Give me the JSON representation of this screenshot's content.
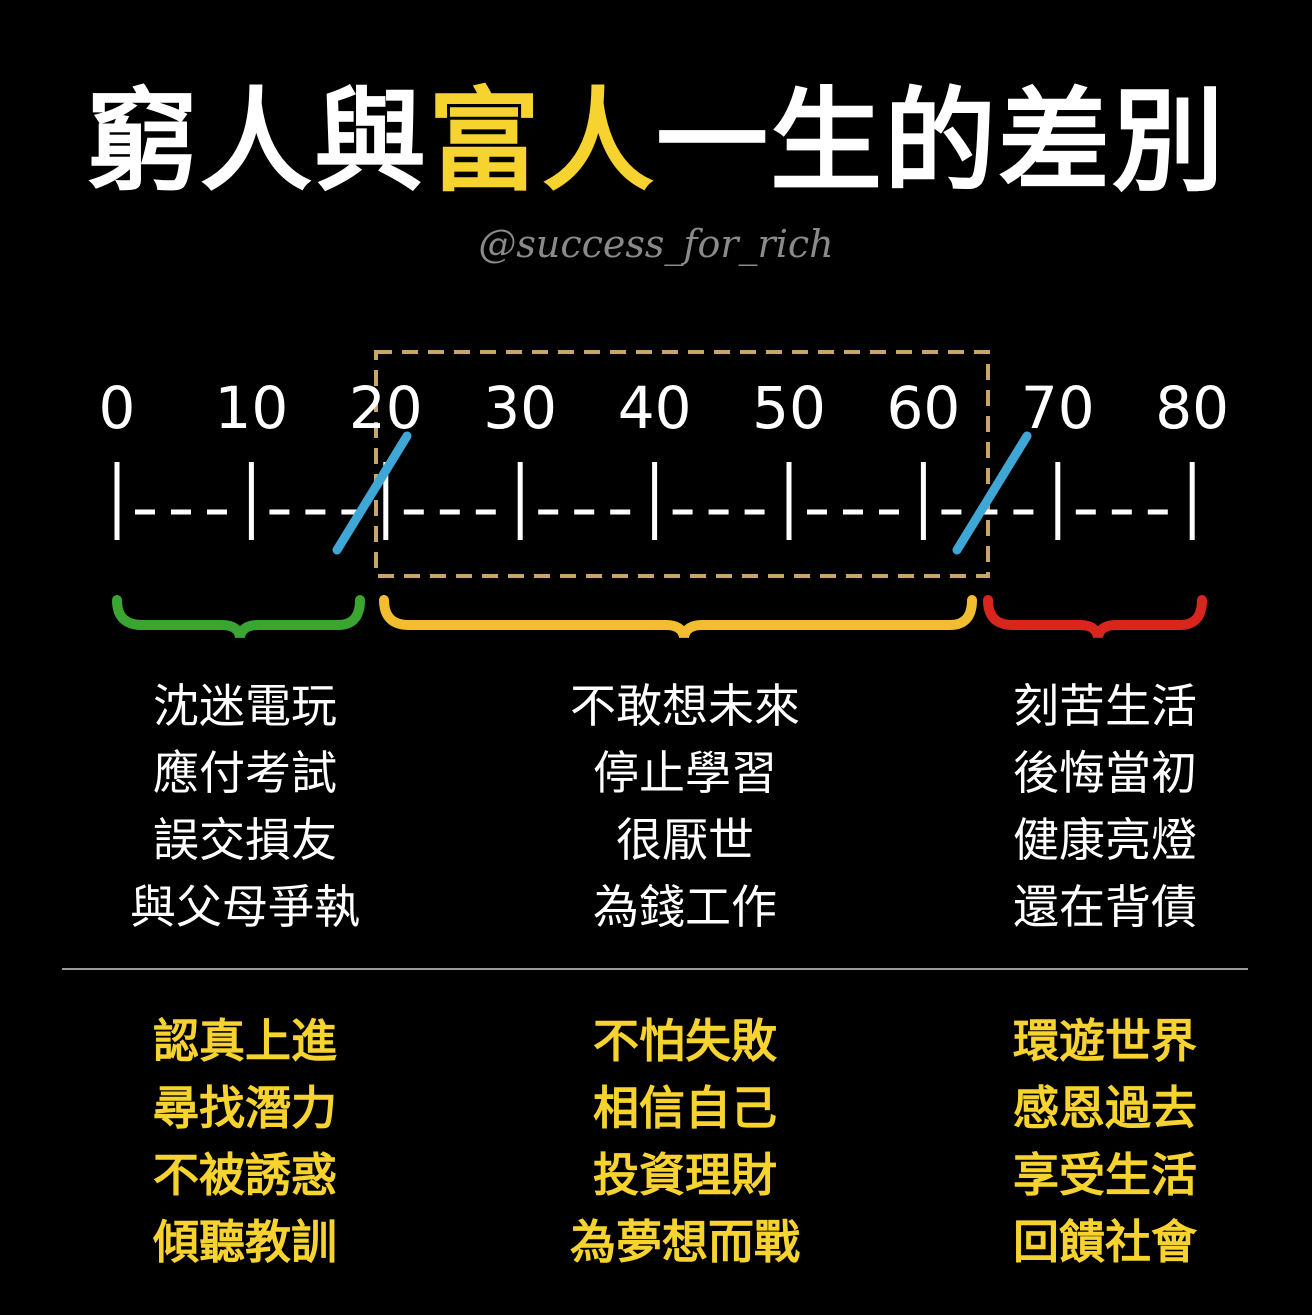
{
  "title": {
    "part1": "窮人與",
    "part2": "富人",
    "part3": "一生的差別"
  },
  "handle": "@success_for_rich",
  "ages": [
    "0",
    "10",
    "20",
    "30",
    "40",
    "50",
    "60",
    "70",
    "80"
  ],
  "colors": {
    "highlight": "#f7d32f",
    "youth_brace": "#3aa531",
    "middle_brace": "#f2bd2e",
    "old_brace": "#d8261f",
    "slash": "#3fa7d6",
    "dashed_box": "#c9a56a"
  },
  "poor": {
    "youth": [
      "沈迷電玩",
      "應付考試",
      "誤交損友",
      "與父母爭執"
    ],
    "middle": [
      "不敢想未來",
      "停止學習",
      "很厭世",
      "為錢工作"
    ],
    "old": [
      "刻苦生活",
      "後悔當初",
      "健康亮燈",
      "還在背債"
    ]
  },
  "rich": {
    "youth": [
      "認真上進",
      "尋找潛力",
      "不被誘惑",
      "傾聽教訓"
    ],
    "middle": [
      "不怕失敗",
      "相信自己",
      "投資理財",
      "為夢想而戰"
    ],
    "old": [
      "環遊世界",
      "感恩過去",
      "享受生活",
      "回饋社會"
    ]
  }
}
